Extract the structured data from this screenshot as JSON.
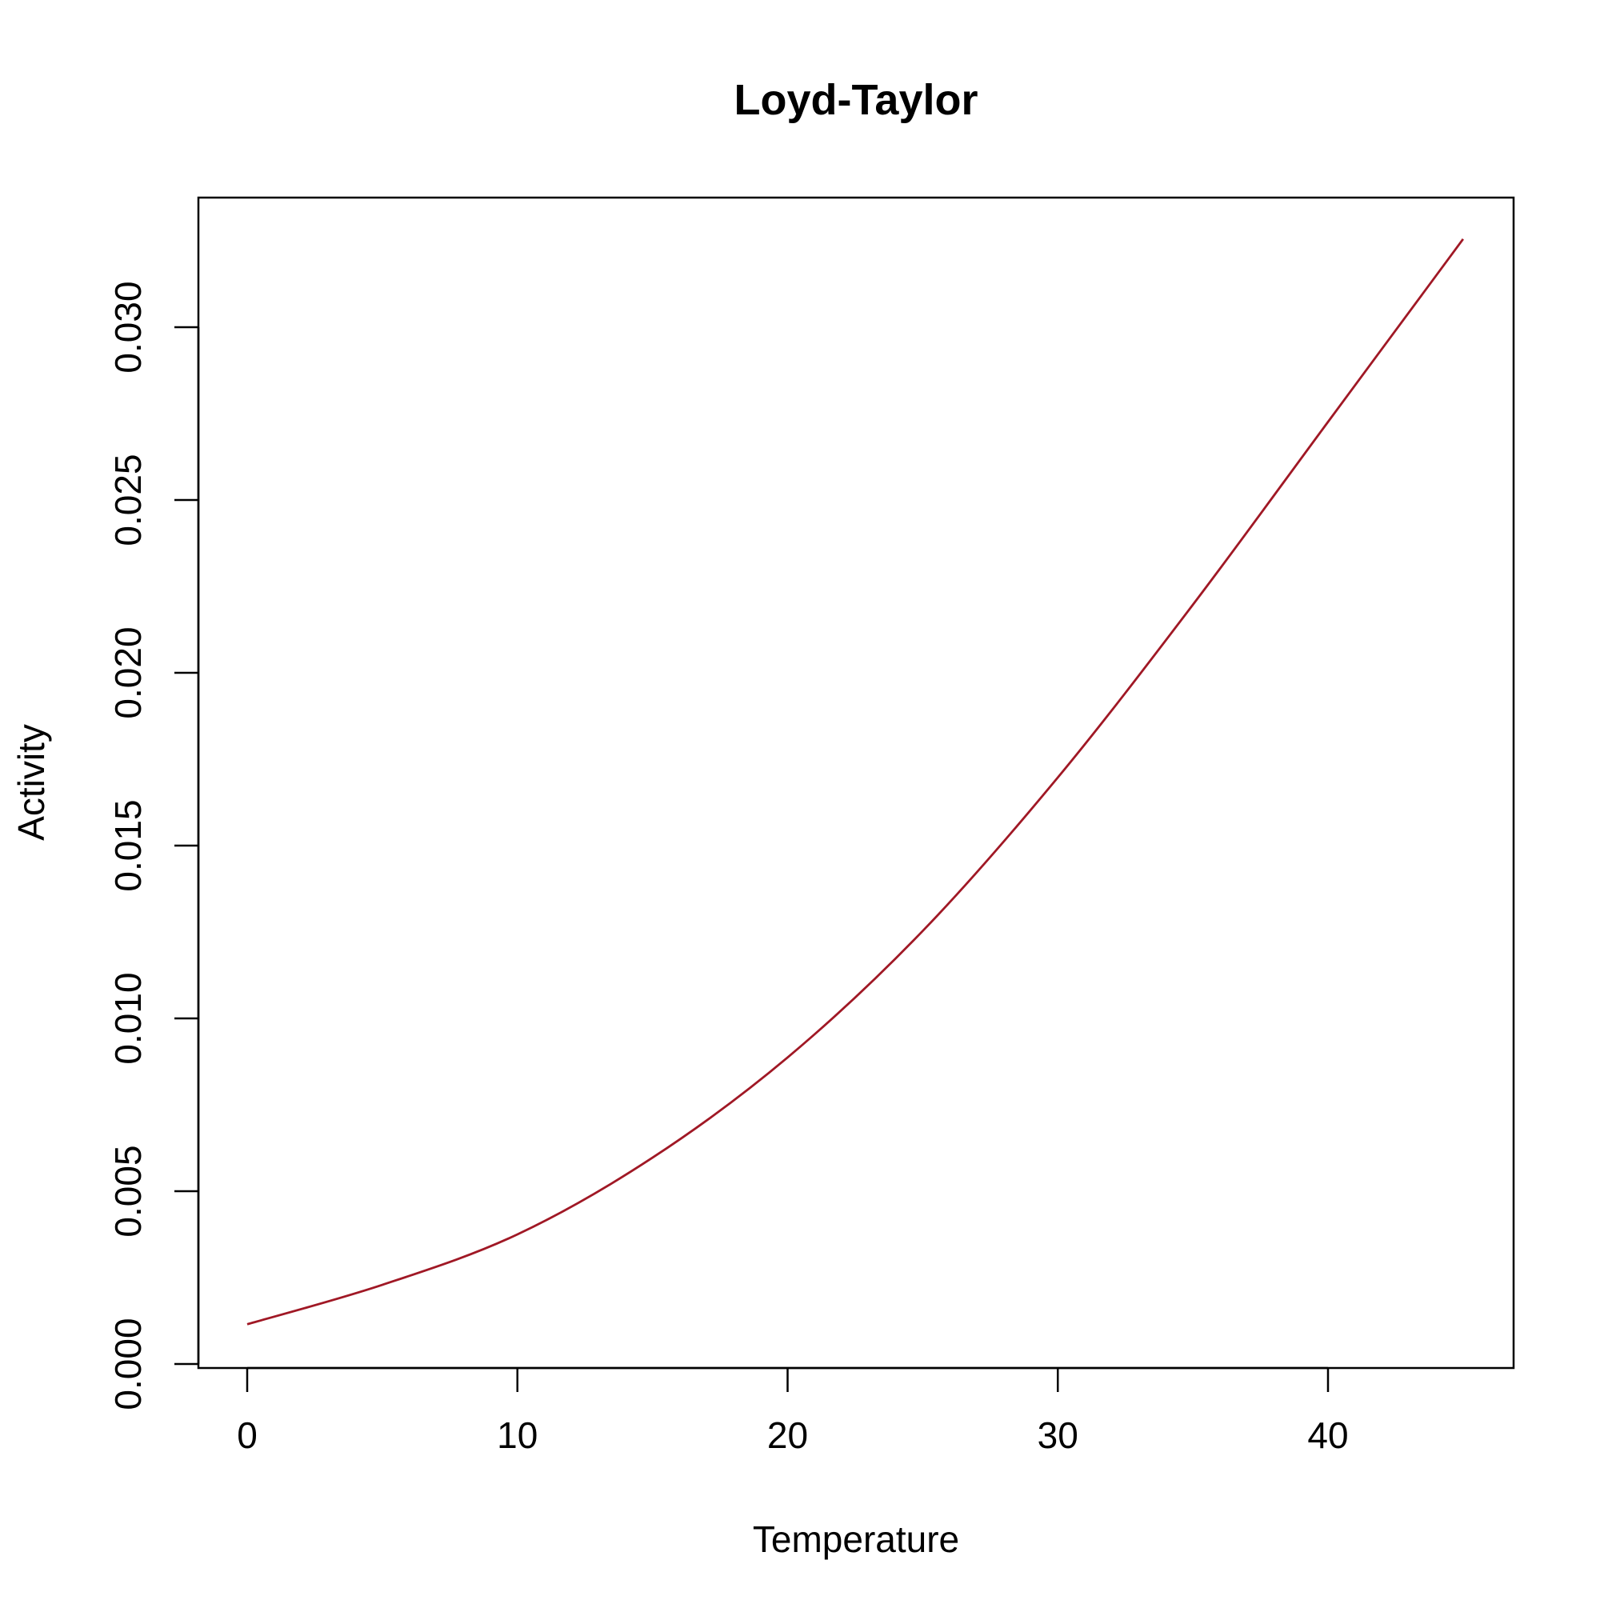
{
  "chart_data": {
    "type": "line",
    "title": "Loyd-Taylor",
    "xlabel": "Temperature",
    "ylabel": "Activity",
    "xlim": [
      0,
      45
    ],
    "ylim": [
      0,
      0.032
    ],
    "x_ticks": [
      0,
      10,
      20,
      30,
      40
    ],
    "x_tick_labels": [
      "0",
      "10",
      "20",
      "30",
      "40"
    ],
    "y_ticks": [
      0,
      0.005,
      0.01,
      0.015,
      0.02,
      0.025,
      0.03
    ],
    "y_tick_labels": [
      "0.000",
      "0.005",
      "0.010",
      "0.015",
      "0.020",
      "0.025",
      "0.030"
    ],
    "grid": false,
    "line_color": "#a01825",
    "series": [
      {
        "x": [
          0,
          5,
          10,
          15,
          20,
          25,
          30,
          35,
          40,
          45
        ],
        "y": [
          0.00115,
          0.00229,
          0.00375,
          0.00597,
          0.00887,
          0.01253,
          0.01697,
          0.02197,
          0.02726,
          0.03255
        ]
      }
    ]
  }
}
